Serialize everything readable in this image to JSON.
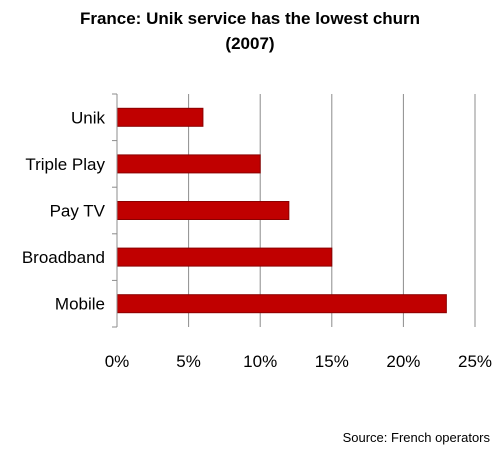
{
  "chart_data": {
    "type": "bar",
    "orientation": "horizontal",
    "title_lines": [
      "France: Unik service has the lowest churn",
      "(2007)"
    ],
    "categories": [
      "Unik",
      "Triple Play",
      "Pay TV",
      "Broadband",
      "Mobile"
    ],
    "values": [
      6,
      10,
      12,
      15,
      23
    ],
    "value_unit": "%",
    "xlim": [
      0,
      25
    ],
    "x_ticks": [
      "0%",
      "5%",
      "10%",
      "15%",
      "20%",
      "25%"
    ],
    "x_tick_values": [
      0,
      5,
      10,
      15,
      20,
      25
    ],
    "grid": "vertical",
    "legend": "none",
    "bar_color": "#C00000",
    "bar_stroke_color": "#8B0000",
    "grid_color": "#8C8C8C"
  },
  "source": "Source: French operators"
}
